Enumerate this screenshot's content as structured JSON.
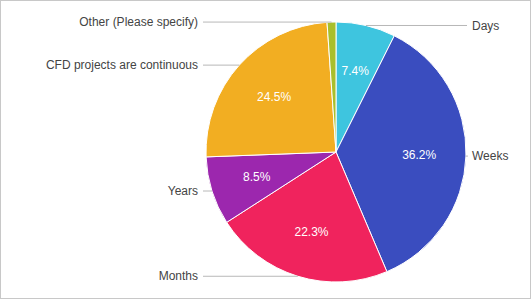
{
  "chart_data": {
    "type": "pie",
    "categories": [
      "Days",
      "Weeks",
      "Months",
      "Years",
      "CFD projects are continuous",
      "Other (Please specify)"
    ],
    "values": [
      7.4,
      36.2,
      22.3,
      8.5,
      24.5,
      1.1
    ],
    "value_labels": [
      "7.4%",
      "36.2%",
      "22.3%",
      "8.5%",
      "24.5%",
      null
    ],
    "colors": [
      "#3ec5df",
      "#3a4dbf",
      "#f0235d",
      "#9c27ae",
      "#f2ae22",
      "#a9bf2c"
    ],
    "data_labels": true
  }
}
